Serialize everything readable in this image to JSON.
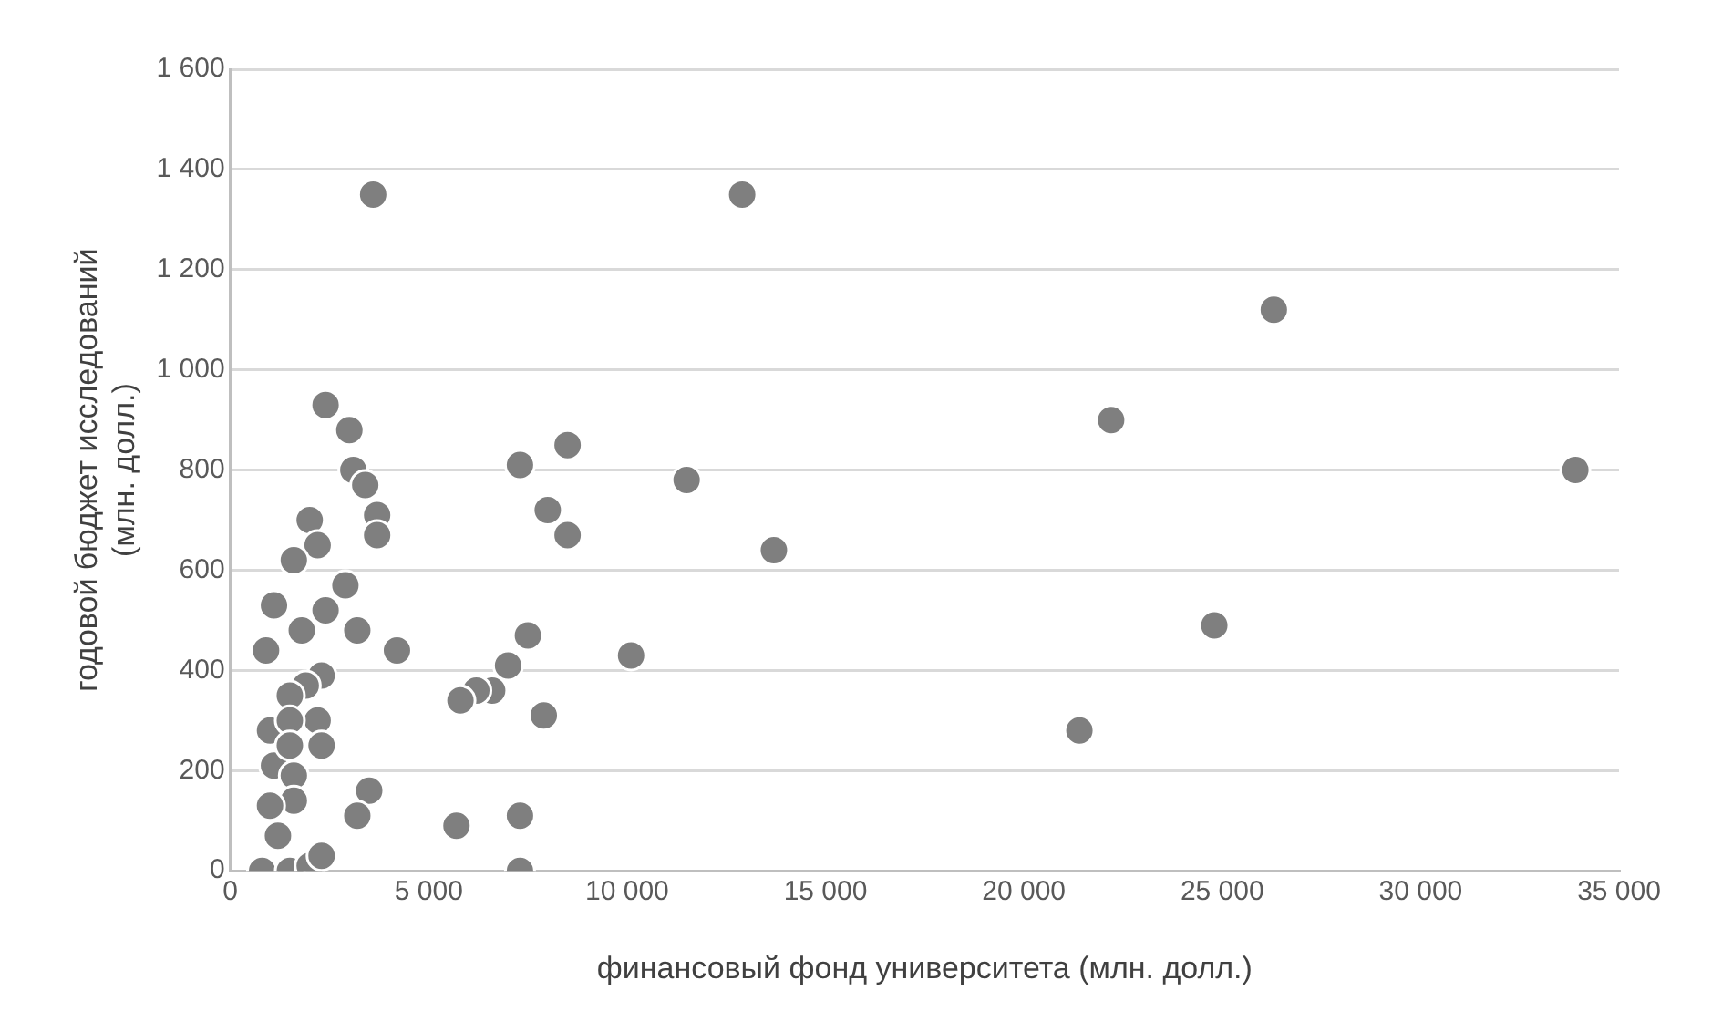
{
  "chart_data": {
    "type": "scatter",
    "xlabel": "финансовый фонд университета (млн. долл.)",
    "ylabel": "годовой бюджет исследований\n(млн. долл.)",
    "x": [
      3600,
      12900,
      26300,
      22200,
      33900,
      24800,
      21400,
      13700,
      11500,
      8500,
      8500,
      8000,
      7300,
      7500,
      7900,
      7000,
      6600,
      6200,
      5800,
      5700,
      7300,
      7300,
      10100,
      2400,
      3000,
      3100,
      3400,
      3700,
      3700,
      2000,
      2200,
      1600,
      2900,
      1100,
      2400,
      1800,
      3200,
      4200,
      900,
      2300,
      1900,
      1500,
      2200,
      2300,
      1000,
      1100,
      1600,
      1600,
      1000,
      3500,
      3200,
      1200,
      800,
      1500,
      2000,
      2300,
      1500,
      1500
    ],
    "values": [
      1350,
      1350,
      1120,
      900,
      800,
      490,
      280,
      640,
      780,
      850,
      670,
      720,
      810,
      470,
      310,
      410,
      360,
      360,
      340,
      90,
      110,
      0,
      430,
      930,
      880,
      800,
      770,
      710,
      670,
      700,
      650,
      620,
      570,
      530,
      520,
      480,
      480,
      440,
      440,
      390,
      370,
      350,
      300,
      250,
      280,
      210,
      190,
      140,
      130,
      160,
      110,
      70,
      0,
      0,
      10,
      30,
      300,
      250
    ],
    "color": "#7f7f7f",
    "marker": "circle",
    "xlim": [
      0,
      35000
    ],
    "xticks": [
      0,
      {
        "value": 5000,
        "label": "5 000"
      },
      {
        "value": 10000,
        "label": "10 000"
      },
      {
        "value": 15000,
        "label": "15 000"
      },
      {
        "value": 20000,
        "label": "20 000"
      },
      {
        "value": 25000,
        "label": "25 000"
      },
      {
        "value": 30000,
        "label": "30 000"
      },
      {
        "value": 35000,
        "label": "35 000"
      }
    ],
    "ylim": [
      0,
      1600
    ],
    "yticks": [
      0,
      200,
      400,
      600,
      800,
      {
        "value": 1000,
        "label": "1 000"
      },
      {
        "value": 1200,
        "label": "1 200"
      },
      {
        "value": 1400,
        "label": "1 400"
      },
      {
        "value": 1600,
        "label": "1 600"
      }
    ],
    "grid": "y",
    "legend": false
  }
}
